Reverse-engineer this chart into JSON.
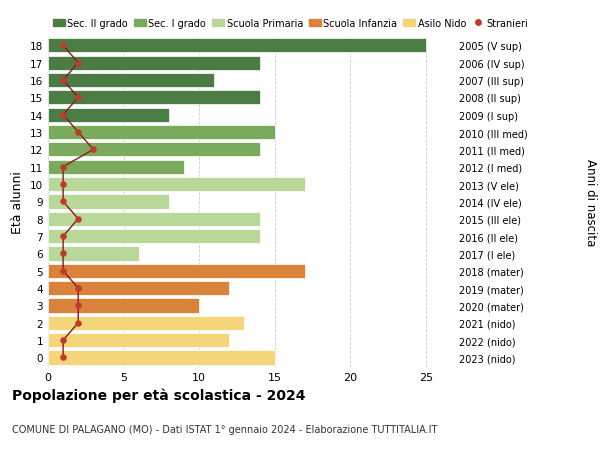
{
  "ages": [
    18,
    17,
    16,
    15,
    14,
    13,
    12,
    11,
    10,
    9,
    8,
    7,
    6,
    5,
    4,
    3,
    2,
    1,
    0
  ],
  "right_labels": [
    "2005 (V sup)",
    "2006 (IV sup)",
    "2007 (III sup)",
    "2008 (II sup)",
    "2009 (I sup)",
    "2010 (III med)",
    "2011 (II med)",
    "2012 (I med)",
    "2013 (V ele)",
    "2014 (IV ele)",
    "2015 (III ele)",
    "2016 (II ele)",
    "2017 (I ele)",
    "2018 (mater)",
    "2019 (mater)",
    "2020 (mater)",
    "2021 (nido)",
    "2022 (nido)",
    "2023 (nido)"
  ],
  "bar_values": [
    25,
    14,
    11,
    14,
    8,
    15,
    14,
    9,
    17,
    8,
    14,
    14,
    6,
    17,
    12,
    10,
    13,
    12,
    15
  ],
  "bar_colors": [
    "#4a7c44",
    "#4a7c44",
    "#4a7c44",
    "#4a7c44",
    "#4a7c44",
    "#7aaa5c",
    "#7aaa5c",
    "#7aaa5c",
    "#b8d89a",
    "#b8d89a",
    "#b8d89a",
    "#b8d89a",
    "#b8d89a",
    "#d9823a",
    "#d9823a",
    "#d9823a",
    "#f5d57a",
    "#f5d57a",
    "#f5d57a"
  ],
  "stranieri": [
    1,
    2,
    1,
    2,
    1,
    2,
    3,
    1,
    1,
    1,
    2,
    1,
    1,
    1,
    2,
    2,
    2,
    1,
    1
  ],
  "legend_labels": [
    "Sec. II grado",
    "Sec. I grado",
    "Scuola Primaria",
    "Scuola Infanzia",
    "Asilo Nido",
    "Stranieri"
  ],
  "legend_colors": [
    "#4a7c44",
    "#7aaa5c",
    "#b8d89a",
    "#d9823a",
    "#f5d57a",
    "#c0392b"
  ],
  "ylabel_left": "Età alunni",
  "ylabel_right": "Anni di nascita",
  "title": "Popolazione per età scolastica - 2024",
  "subtitle": "COMUNE DI PALAGANO (MO) - Dati ISTAT 1° gennaio 2024 - Elaborazione TUTTITALIA.IT",
  "xlim": [
    0,
    27
  ],
  "background_color": "#ffffff",
  "grid_color": "#cccccc",
  "stranieri_color": "#c0392b",
  "stranieri_line_color": "#8b1a1a"
}
